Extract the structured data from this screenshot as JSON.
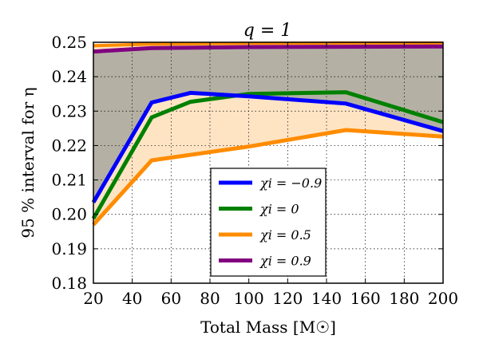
{
  "chart_data": {
    "type": "line",
    "title": "q = 1",
    "xlabel": "Total Mass [M☉]",
    "ylabel": "95 % interval for η",
    "xlim": [
      20,
      200
    ],
    "ylim": [
      0.18,
      0.25
    ],
    "xticks": [
      "20",
      "40",
      "60",
      "80",
      "100",
      "120",
      "140",
      "160",
      "180",
      "200"
    ],
    "yticks": [
      "0.18",
      "0.19",
      "0.20",
      "0.21",
      "0.22",
      "0.23",
      "0.24",
      "0.25"
    ],
    "grid": true,
    "legend_position": "bottom-center",
    "series": [
      {
        "name": "χi = −0.9",
        "color": "#0000ff",
        "x": [
          20,
          50,
          70,
          100,
          150,
          200
        ],
        "values": [
          0.2035,
          0.2325,
          0.2353,
          0.2343,
          0.2322,
          0.2242
        ]
      },
      {
        "name": "χi = 0",
        "color": "#008000",
        "x": [
          20,
          50,
          70,
          100,
          150,
          200
        ],
        "values": [
          0.1988,
          0.2282,
          0.2327,
          0.235,
          0.2355,
          0.2268
        ]
      },
      {
        "name": "χi = 0.5",
        "color": "#ff8c00",
        "x": [
          20,
          50,
          100,
          150,
          200
        ],
        "values": [
          0.197,
          0.2157,
          0.2197,
          0.2245,
          0.2226
        ]
      },
      {
        "name": "χi = 0.9",
        "color": "#800080",
        "x": [
          20,
          50,
          100,
          150,
          200
        ],
        "values": [
          0.2473,
          0.2483,
          0.2486,
          0.2487,
          0.2488
        ]
      }
    ],
    "upper_bound": {
      "name": "χi = 0.5 upper",
      "color": "#ff8c00",
      "x": [
        20,
        50,
        100,
        150,
        200
      ],
      "values": [
        0.249,
        0.2495,
        0.2497,
        0.2498,
        0.2498
      ]
    },
    "lower_bound": {
      "name": "χi = 0.5 lower",
      "color": "#ff8c00",
      "x": [
        20,
        50,
        100,
        150,
        200
      ],
      "values": [
        0.197,
        0.2157,
        0.2197,
        0.2245,
        0.2226
      ]
    },
    "fills": [
      {
        "name": "χi = 0.5 band",
        "color": "#ffe4c4"
      },
      {
        "name": "χi = 0.9 band",
        "color": "#b4b1a4"
      }
    ]
  }
}
